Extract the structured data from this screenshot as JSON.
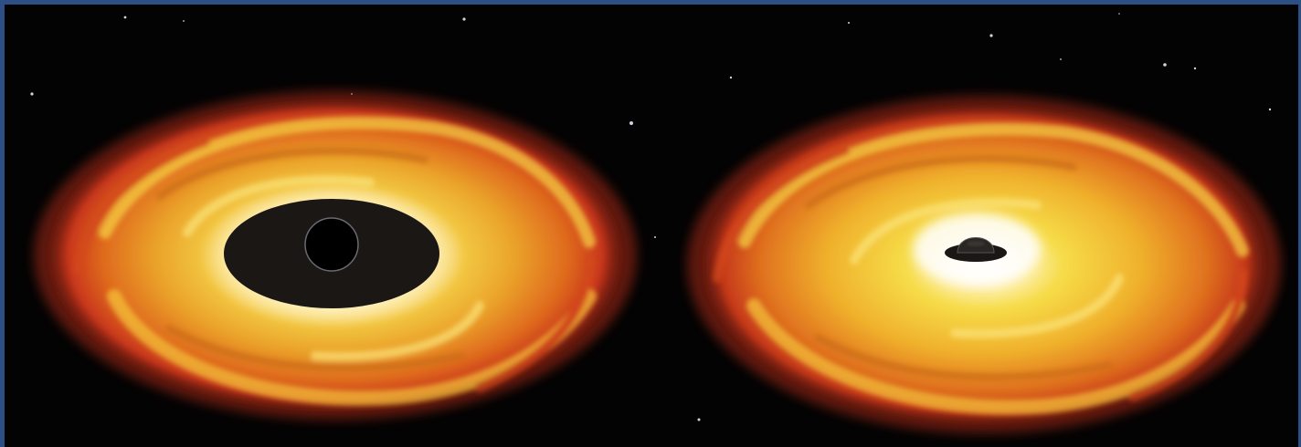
{
  "image": {
    "subject": "two-accretion-disks",
    "colors": {
      "frame": "#2c4f86",
      "space": "#030304",
      "disk_outer": "#c8361a",
      "disk_mid": "#e8901c",
      "disk_inner": "#f3d23a",
      "disk_core_glow": "#fff6d0",
      "hole": "#151210"
    }
  },
  "panels": [
    {
      "name": "left-disk",
      "inner_hole": "large-oval"
    },
    {
      "name": "right-disk",
      "inner_hole": "small-dome"
    }
  ]
}
